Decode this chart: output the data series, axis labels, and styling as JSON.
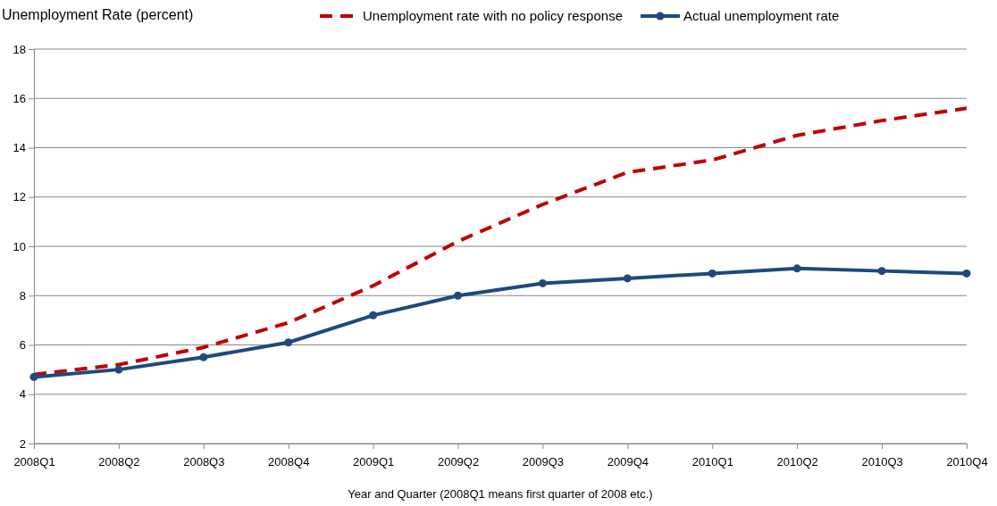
{
  "chart_data": {
    "type": "line",
    "ylabel": "Unemployment Rate (percent)",
    "xlabel": "Year and Quarter (2008Q1 means first quarter of 2008 etc.)",
    "categories": [
      "2008Q1",
      "2008Q2",
      "2008Q3",
      "2008Q4",
      "2009Q1",
      "2009Q2",
      "2009Q3",
      "2009Q4",
      "2010Q1",
      "2010Q2",
      "2010Q3",
      "2010Q4"
    ],
    "series": [
      {
        "name": "Unemployment rate with no policy response",
        "color": "#c00000",
        "line_style": "dashed",
        "marker": "none",
        "values": [
          4.8,
          5.2,
          5.9,
          6.9,
          8.4,
          10.2,
          11.7,
          13.0,
          13.5,
          14.5,
          15.1,
          15.6
        ]
      },
      {
        "name": "Actual unemployment rate",
        "color": "#1f497d",
        "line_style": "solid",
        "marker": "circle",
        "values": [
          4.7,
          5.0,
          5.5,
          6.1,
          7.2,
          8.0,
          8.5,
          8.7,
          8.9,
          9.1,
          9.0,
          8.9
        ]
      }
    ],
    "ylim": [
      2,
      18
    ],
    "yticks": [
      2,
      4,
      6,
      8,
      10,
      12,
      14,
      16,
      18
    ],
    "grid": "y",
    "legend": "top right"
  }
}
